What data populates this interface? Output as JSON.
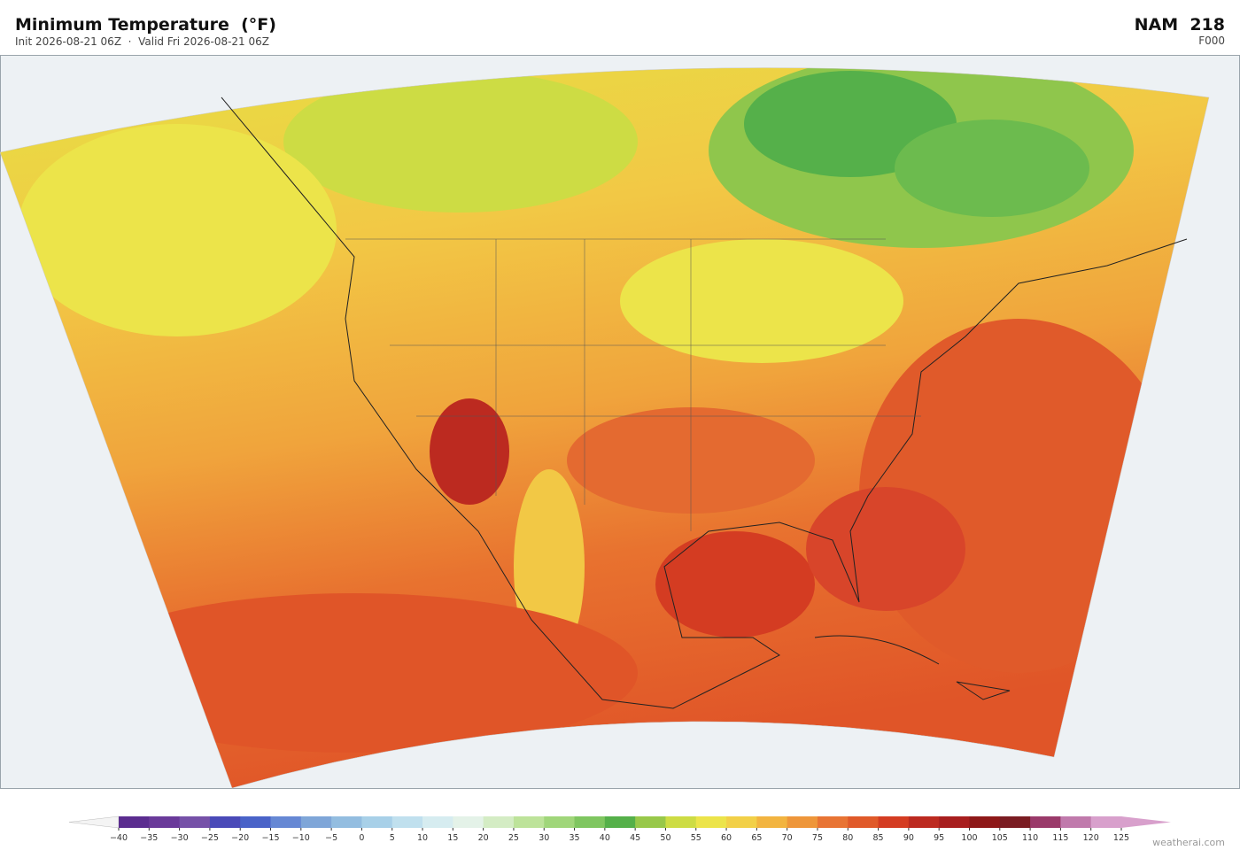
{
  "header": {
    "title": "Minimum Temperature  (°F)",
    "subtitle": "Init 2026-08-21 06Z  ·  Valid Fri 2026-08-21 06Z",
    "model": "NAM  218",
    "forecast_hour": "F000"
  },
  "colorbar": {
    "ticks": [
      {
        "value": -40,
        "label": "−40"
      },
      {
        "value": -35,
        "label": "−35"
      },
      {
        "value": -30,
        "label": "−30"
      },
      {
        "value": -25,
        "label": "−25"
      },
      {
        "value": -20,
        "label": "−20"
      },
      {
        "value": -15,
        "label": "−15"
      },
      {
        "value": -10,
        "label": "−10"
      },
      {
        "value": -5,
        "label": "−5"
      },
      0,
      5,
      10,
      15,
      20,
      25,
      30,
      35,
      40,
      45,
      50,
      55,
      60,
      65,
      70,
      75,
      80,
      85,
      90,
      95,
      100,
      105,
      110,
      115,
      120,
      125
    ],
    "colors": [
      "#5b2d8f",
      "#6a3a9a",
      "#7651a8",
      "#4a4ab8",
      "#4a63c8",
      "#6688d4",
      "#7fa6d8",
      "#93bde0",
      "#a8d0e8",
      "#c0e0ee",
      "#d6ecf0",
      "#e4f2e8",
      "#d4ecc4",
      "#bde39a",
      "#a0d67a",
      "#7fc660",
      "#55b04a",
      "#98c84a",
      "#cddc44",
      "#ece44a",
      "#f2d048",
      "#f2b440",
      "#ee963a",
      "#e87434",
      "#e05a2a",
      "#d43c22",
      "#bc2a20",
      "#a81e1e",
      "#8e1818",
      "#7a1c22",
      "#9a3a6a",
      "#c07aac",
      "#d8a0cc"
    ],
    "under_color": "#f4f4f4",
    "over_color": "#d8a0cc"
  },
  "footer": {
    "watermark": "weatherai.com"
  }
}
